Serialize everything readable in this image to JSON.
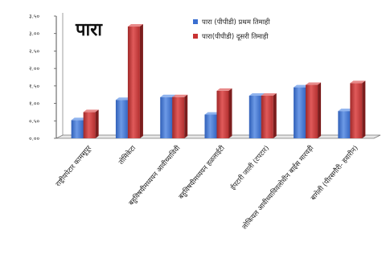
{
  "chart_data": {
    "type": "bar",
    "title": "पारा",
    "xlabel": "",
    "ylabel": "",
    "ylim": [
      0,
      3.5
    ],
    "yticks": [
      {
        "value": 0,
        "label": "०.००"
      },
      {
        "value": 0.5,
        "label": "०.५०"
      },
      {
        "value": 1.0,
        "label": "१.००"
      },
      {
        "value": 1.5,
        "label": "१.५०"
      },
      {
        "value": 2.0,
        "label": "२.००"
      },
      {
        "value": 2.5,
        "label": "२.५०"
      },
      {
        "value": 3.0,
        "label": "३.००"
      },
      {
        "value": 3.5,
        "label": "३.५०"
      }
    ],
    "categories": [
      "राष्ट्रीयपेटार कामसूपूर",
      "तोमिकेटा",
      "बहुविषयीमध्ययन आवीच्याविवी",
      "बहुविषयीमध्ययन हळलाईटी",
      "ईपटारी जाली (टपटार)",
      "लोकियल आवीच्याविवलोधीन बाईस मारवड़ी",
      "बागेली (पीरसगौरी- हवारीन)"
    ],
    "series": [
      {
        "name": "पारा (पीपीडी) प्रथम तिमाही",
        "color": "#4a7fd4",
        "values": [
          0.52,
          1.1,
          1.18,
          0.68,
          1.22,
          1.46,
          0.78
        ]
      },
      {
        "name": "पारा(पीपीडी) दूसरी तिमाही",
        "color": "#c83c3c",
        "values": [
          0.75,
          3.2,
          1.18,
          1.36,
          1.22,
          1.53,
          1.58
        ]
      }
    ],
    "grid": false,
    "legend": "top-right"
  }
}
